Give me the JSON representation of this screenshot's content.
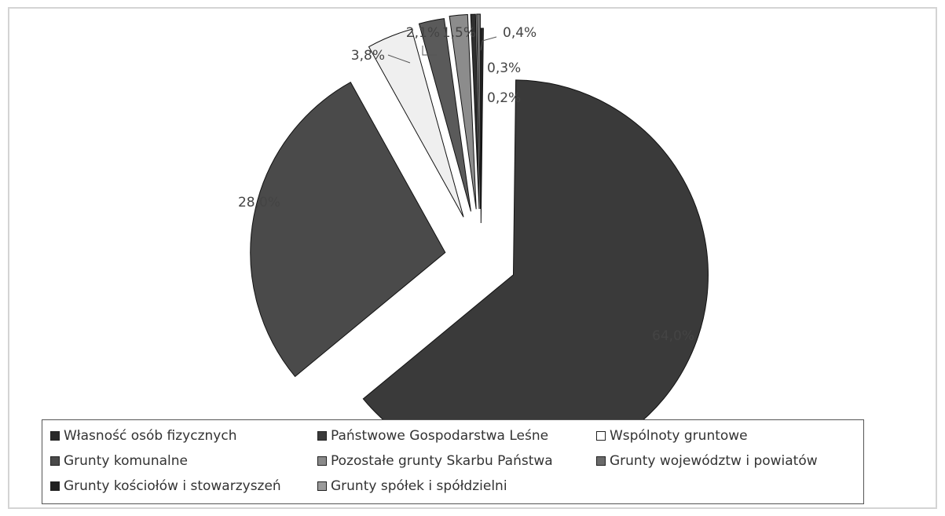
{
  "chart_data": {
    "type": "pie",
    "slices": [
      {
        "name": "Własność osób fizycznych",
        "value": 0.2,
        "label": "0,2%",
        "color": "#2a2a2a"
      },
      {
        "name": "Państwowe Gospodarstwa Leśne",
        "value": 64.0,
        "label": "64,0%",
        "color": "#3a3a3a"
      },
      {
        "name": "Grunty komunalne",
        "value": 28.0,
        "label": "28,0%",
        "color": "#4a4a4a"
      },
      {
        "name": "Wspólnoty gruntowe",
        "value": 3.8,
        "label": "3,8%",
        "color": "#efefef"
      },
      {
        "name": "Pozostałe grunty Skarbu Państwa",
        "value": 2.1,
        "label": "2,1%",
        "color": "#5a5a5a"
      },
      {
        "name": "Grunty województw i powiatów",
        "value": 1.5,
        "label": "1,5%",
        "color": "#8c8c8c"
      },
      {
        "name": "Grunty kościołów i stowarzyszeń",
        "value": 0.4,
        "label": "0,4%",
        "color": "#303030"
      },
      {
        "name": "Grunty spółek i spółdzielni",
        "value": 0.3,
        "label": "0,3%",
        "color": "#6e6e6e"
      }
    ],
    "legend": {
      "placement": "bottom",
      "items": [
        {
          "label": "Własność osób fizycznych",
          "color": "#2a2a2a"
        },
        {
          "label": "Państwowe Gospodarstwa Leśne",
          "color": "#3a3a3a"
        },
        {
          "label": "Wspólnoty gruntowe",
          "color": "#ffffff"
        },
        {
          "label": "Grunty komunalne",
          "color": "#4a4a4a"
        },
        {
          "label": "Pozostałe grunty Skarbu Państwa",
          "color": "#8a8a8a"
        },
        {
          "label": "Grunty województw i powiatów",
          "color": "#6a6a6a"
        },
        {
          "label": "Grunty kościołów i stowarzyszeń",
          "color": "#202020"
        },
        {
          "label": "Grunty spółek i spółdzielni",
          "color": "#9a9a9a"
        }
      ]
    }
  }
}
